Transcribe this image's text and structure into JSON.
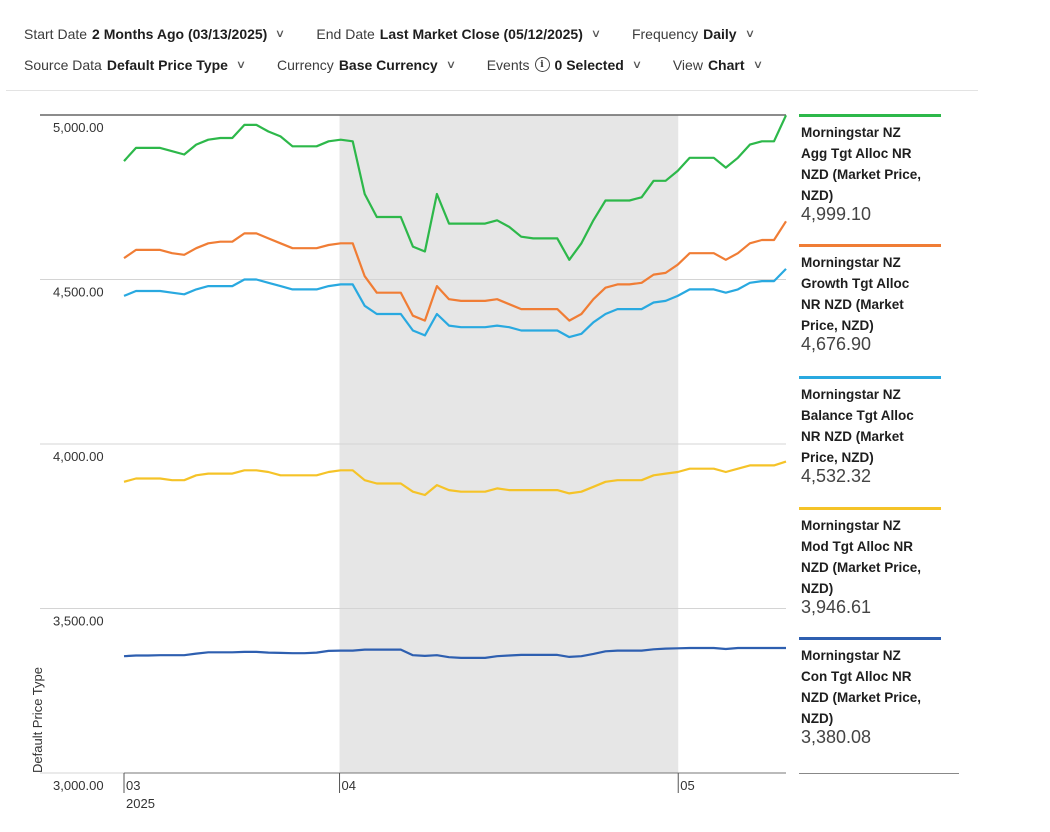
{
  "controls": {
    "start_date": {
      "label": "Start Date",
      "value": "2 Months Ago (03/13/2025)"
    },
    "end_date": {
      "label": "End Date",
      "value": "Last Market Close (05/12/2025)"
    },
    "frequency": {
      "label": "Frequency",
      "value": "Daily"
    },
    "source_data": {
      "label": "Source Data",
      "value": "Default Price Type"
    },
    "currency": {
      "label": "Currency",
      "value": "Base Currency"
    },
    "events": {
      "label": "Events",
      "value": "0 Selected"
    },
    "view": {
      "label": "View",
      "value": "Chart"
    }
  },
  "chart_data": {
    "type": "line",
    "ylabel": "Default Price Type",
    "ylim": [
      3000,
      5000
    ],
    "yticks": [
      {
        "value": 5000,
        "label": "5,000.00"
      },
      {
        "value": 4500,
        "label": "4,500.00"
      },
      {
        "value": 4000,
        "label": "4,000.00"
      },
      {
        "value": 3500,
        "label": "3,500.00"
      },
      {
        "value": 3000,
        "label": "3,000.00"
      }
    ],
    "xlim": [
      0,
      43
    ],
    "xticks": [
      {
        "x": 0,
        "label": "03",
        "sublabel": "2025"
      },
      {
        "x": 14,
        "label": "04"
      },
      {
        "x": 36,
        "label": "05"
      }
    ],
    "shaded_region": {
      "x_start": 14,
      "x_end": 36
    },
    "series": [
      {
        "name": "Morningstar NZ Agg Tgt Alloc NR NZD (Market Price, NZD)",
        "display_value": "4,999.10",
        "color": "#2db84a",
        "values": [
          4860,
          4900,
          4900,
          4900,
          4890,
          4880,
          4910,
          4925,
          4930,
          4930,
          4970,
          4970,
          4950,
          4935,
          4905,
          4905,
          4905,
          4920,
          4925,
          4920,
          4760,
          4690,
          4690,
          4690,
          4600,
          4585,
          4760,
          4670,
          4670,
          4670,
          4670,
          4680,
          4660,
          4630,
          4625,
          4625,
          4625,
          4560,
          4610,
          4680,
          4740,
          4740,
          4740,
          4750,
          4800,
          4800,
          4830,
          4870,
          4870,
          4870,
          4840,
          4870,
          4910,
          4920,
          4920,
          4999.1
        ]
      },
      {
        "name": "Morningstar NZ Growth Tgt Alloc NR NZD (Market Price, NZD)",
        "display_value": "4,676.90",
        "color": "#f07d35",
        "values": [
          4565,
          4590,
          4590,
          4590,
          4580,
          4575,
          4595,
          4610,
          4615,
          4615,
          4640,
          4640,
          4625,
          4610,
          4595,
          4595,
          4595,
          4605,
          4610,
          4610,
          4510,
          4460,
          4460,
          4460,
          4390,
          4375,
          4480,
          4440,
          4435,
          4435,
          4435,
          4440,
          4425,
          4410,
          4410,
          4410,
          4410,
          4375,
          4395,
          4440,
          4475,
          4485,
          4485,
          4490,
          4515,
          4520,
          4545,
          4580,
          4580,
          4580,
          4560,
          4580,
          4610,
          4620,
          4620,
          4676.9
        ]
      },
      {
        "name": "Morningstar NZ Balance Tgt Alloc NR NZD (Market Price, NZD)",
        "display_value": "4,532.32",
        "color": "#29a9e0",
        "values": [
          4450,
          4465,
          4465,
          4465,
          4460,
          4455,
          4470,
          4480,
          4480,
          4480,
          4500,
          4500,
          4490,
          4480,
          4470,
          4470,
          4470,
          4480,
          4485,
          4485,
          4420,
          4395,
          4395,
          4395,
          4345,
          4330,
          4395,
          4360,
          4355,
          4355,
          4355,
          4360,
          4355,
          4345,
          4345,
          4345,
          4345,
          4325,
          4335,
          4370,
          4395,
          4410,
          4410,
          4410,
          4430,
          4435,
          4450,
          4470,
          4470,
          4470,
          4460,
          4470,
          4490,
          4495,
          4495,
          4532.32
        ]
      },
      {
        "name": "Morningstar NZ Mod Tgt Alloc NR NZD (Market Price, NZD)",
        "display_value": "3,946.61",
        "color": "#f5c328",
        "values": [
          3885,
          3895,
          3895,
          3895,
          3890,
          3890,
          3905,
          3910,
          3910,
          3910,
          3920,
          3920,
          3915,
          3905,
          3905,
          3905,
          3905,
          3915,
          3920,
          3920,
          3890,
          3880,
          3880,
          3880,
          3855,
          3845,
          3875,
          3860,
          3855,
          3855,
          3855,
          3865,
          3860,
          3860,
          3860,
          3860,
          3860,
          3850,
          3855,
          3870,
          3885,
          3890,
          3890,
          3890,
          3905,
          3910,
          3915,
          3925,
          3925,
          3925,
          3915,
          3925,
          3935,
          3935,
          3935,
          3946.61
        ]
      },
      {
        "name": "Morningstar NZ Con Tgt Alloc NR NZD (Market Price, NZD)",
        "display_value": "3,380.08",
        "color": "#2e5fb0",
        "values": [
          3355,
          3357,
          3357,
          3358,
          3358,
          3358,
          3363,
          3367,
          3367,
          3367,
          3368,
          3368,
          3366,
          3365,
          3364,
          3364,
          3366,
          3371,
          3372,
          3372,
          3375,
          3375,
          3375,
          3375,
          3358,
          3356,
          3358,
          3352,
          3350,
          3350,
          3350,
          3355,
          3357,
          3359,
          3359,
          3359,
          3359,
          3353,
          3355,
          3362,
          3370,
          3372,
          3372,
          3372,
          3376,
          3378,
          3379,
          3380,
          3380,
          3380,
          3377,
          3380,
          3380,
          3380,
          3380,
          3380.08
        ]
      }
    ]
  }
}
